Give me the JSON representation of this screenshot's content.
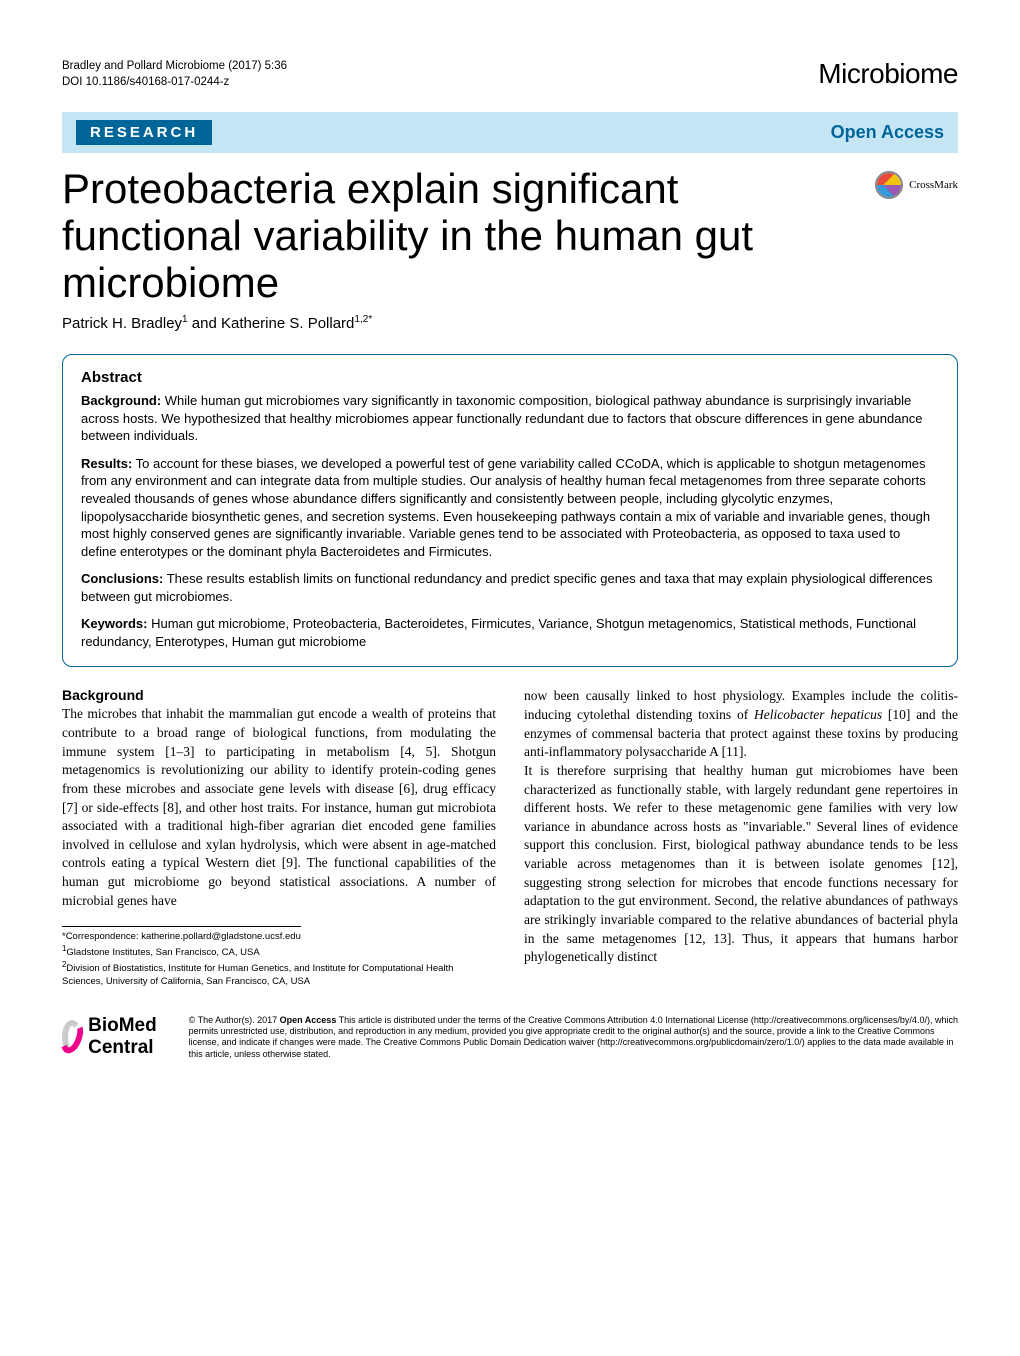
{
  "header": {
    "citation_line1": "Bradley and Pollard Microbiome  (2017) 5:36",
    "citation_line2": "DOI 10.1186/s40168-017-0244-z",
    "journal_logo": "Microbiome"
  },
  "banner": {
    "section": "RESEARCH",
    "open_access": "Open Access"
  },
  "crossmark_label": "CrossMark",
  "title": "Proteobacteria explain significant functional variability in the human gut microbiome",
  "authors_html": "Patrick H. Bradley<sup>1</sup> and Katherine S. Pollard<sup>1,2*</sup>",
  "abstract": {
    "heading": "Abstract",
    "background_label": "Background:",
    "background_text": "  While  human gut microbiomes vary significantly in taxonomic composition, biological pathway abundance is surprisingly invariable across hosts. We hypothesized that healthy microbiomes appear functionally redundant due to factors that obscure differences in gene abundance between individuals.",
    "results_label": "Results:",
    "results_text": "  To account for these biases, we developed a powerful test of gene variability called CCoDA, which is applicable to shotgun metagenomes from any environment and can integrate data from multiple studies. Our analysis of healthy human fecal metagenomes from three separate cohorts revealed thousands of genes whose abundance differs significantly and consistently between people, including glycolytic enzymes, lipopolysaccharide biosynthetic genes, and secretion systems. Even housekeeping pathways contain a mix of variable and invariable genes, though most highly conserved genes are significantly invariable. Variable genes tend to be associated with Proteobacteria, as opposed to taxa used to define enterotypes or the dominant phyla Bacteroidetes and Firmicutes.",
    "conclusions_label": "Conclusions:",
    "conclusions_text": "  These results establish limits on functional redundancy and predict specific genes and taxa that may explain physiological differences between gut microbiomes.",
    "keywords_label": "Keywords:",
    "keywords_text": "  Human gut microbiome, Proteobacteria, Bacteroidetes, Firmicutes, Variance, Shotgun metagenomics, Statistical methods, Functional redundancy, Enterotypes, Human gut microbiome"
  },
  "body": {
    "background_heading": "Background",
    "left_p1": "The microbes that inhabit the mammalian gut encode a wealth of proteins that contribute to a broad range of biological functions, from modulating the immune system [1–3] to participating in metabolism [4, 5]. Shotgun metagenomics is revolutionizing our ability to identify protein-coding genes from these microbes and associate gene levels with disease [6], drug efficacy [7] or side-effects [8], and other host traits. For instance, human gut microbiota associated with a traditional high-fiber agrarian diet encoded gene families involved in cellulose and xylan hydrolysis, which were absent in age-matched controls eating a typical Western diet [9]. The functional capabilities of the human gut microbiome go beyond statistical associations. A number of microbial genes have",
    "right_p1": "now been causally linked to host physiology. Examples include the colitis-inducing cytolethal distending toxins of Helicobacter hepaticus [10] and the enzymes of commensal bacteria that protect against these toxins by producing anti-inflammatory polysaccharide A [11].",
    "right_p2": "It is therefore surprising that healthy human gut microbiomes have been characterized as functionally stable, with largely redundant gene repertoires in different hosts. We refer to these metagenomic gene families with very low variance in abundance across hosts as \"invariable.\" Several lines of evidence support this conclusion. First, biological pathway abundance tends to be less variable across metagenomes than it is between isolate genomes [12], suggesting strong selection for microbes that encode functions necessary for adaptation to the gut environment. Second, the relative abundances of pathways are strikingly invariable compared to the relative abundances of bacterial phyla in the same metagenomes [12, 13]. Thus, it appears that humans harbor phylogenetically distinct"
  },
  "correspondence": {
    "line1": "*Correspondence: katherine.pollard@gladstone.ucsf.edu",
    "line2": "1Gladstone Institutes, San Francisco, CA, USA",
    "line3": "2Division of Biostatistics, Institute for Human Genetics, and Institute for Computational Health Sciences, University of California, San Francisco, CA, USA"
  },
  "footer": {
    "bmc_text": "BioMed Central",
    "license_prefix": "© The Author(s). 2017 ",
    "license_oa": "Open Access",
    "license_rest": " This article is distributed under the terms of the Creative Commons Attribution 4.0 International License (http://creativecommons.org/licenses/by/4.0/), which permits unrestricted use, distribution, and reproduction in any medium, provided you give appropriate credit to the original author(s) and the source, provide a link to the Creative Commons license, and indicate if changes were made. The Creative Commons Public Domain Dedication waiver (http://creativecommons.org/publicdomain/zero/1.0/) applies to the data made available in this article, unless otherwise stated."
  },
  "colors": {
    "banner_bg": "#c5e5f5",
    "brand_blue": "#006699",
    "text": "#000000",
    "bmc_pink": "#ec008c"
  }
}
